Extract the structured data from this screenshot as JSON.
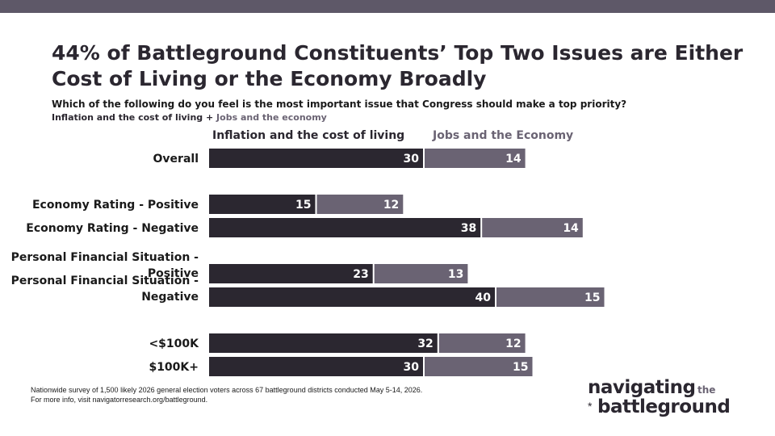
{
  "header": {
    "title": "44% of Battleground Constituents’ Top Two Issues are Either Cost of Living or the Economy Broadly",
    "question": "Which of the following do you feel is the most important issue that Congress should make a top priority?",
    "subtitle_part1": "Inflation and the cost of living",
    "subtitle_plus": " + ",
    "subtitle_part2": "Jobs and the economy"
  },
  "colors": {
    "series1": "#2b2730",
    "series2": "#6a6373",
    "band": "#5e5868"
  },
  "chart_data": {
    "type": "bar",
    "orientation": "horizontal",
    "stacked": true,
    "categories": [
      [
        "Overall"
      ],
      [
        "Economy Rating - Positive"
      ],
      [
        "Economy Rating - Negative"
      ],
      [
        "Personal Financial Situation -",
        "Positive"
      ],
      [
        "Personal Financial Situation -",
        "Negative"
      ],
      [
        "<$100K"
      ],
      [
        "$100K+"
      ]
    ],
    "series": [
      {
        "name": "Inflation and the cost of living",
        "values": [
          30,
          15,
          38,
          23,
          40,
          32,
          30
        ]
      },
      {
        "name": "Jobs and the Economy",
        "values": [
          14,
          12,
          14,
          13,
          15,
          12,
          15
        ]
      }
    ],
    "legend_position": "top",
    "grid": false
  },
  "footer": {
    "note_line1": "Nationwide survey of 1,500 likely 2026 general election voters across 67 battleground districts conducted May 5-14, 2026.",
    "note_line2": "For more info, visit navigatorresearch.org/battleground."
  },
  "logo": {
    "line1": "navigating",
    "small": "the",
    "line2": "battleground",
    "mark": "*"
  }
}
